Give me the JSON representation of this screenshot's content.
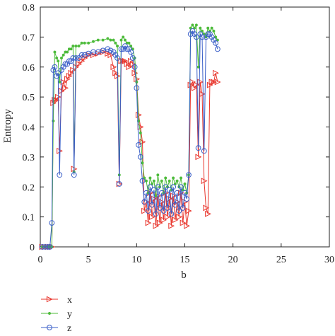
{
  "chart_data": {
    "type": "line",
    "xlabel": "b",
    "ylabel": "Entropy",
    "xlim": [
      0,
      30
    ],
    "ylim": [
      0,
      0.8
    ],
    "xticks": [
      "0",
      "5",
      "10",
      "15",
      "20",
      "25",
      "30"
    ],
    "yticks": [
      "0",
      "0.1",
      "0.2",
      "0.3",
      "0.4",
      "0.5",
      "0.6",
      "0.7",
      "0.8"
    ],
    "grid": false,
    "legend_position": "bottom-left",
    "colors": {
      "x": "#e8332a",
      "y": "#4cbb3a",
      "z": "#3a5fc8",
      "axis": "#222222"
    },
    "series": [
      {
        "name": "x",
        "marker": "triangle-right",
        "points": [
          [
            0.2,
            0.0
          ],
          [
            0.5,
            0.0
          ],
          [
            0.8,
            0.0
          ],
          [
            1.0,
            0.0
          ],
          [
            1.2,
            0.0
          ],
          [
            1.35,
            0.48
          ],
          [
            1.5,
            0.49
          ],
          [
            1.7,
            0.49
          ],
          [
            1.85,
            0.5
          ],
          [
            2.0,
            0.32
          ],
          [
            2.2,
            0.52
          ],
          [
            2.4,
            0.55
          ],
          [
            2.6,
            0.53
          ],
          [
            2.8,
            0.56
          ],
          [
            3.0,
            0.57
          ],
          [
            3.2,
            0.58
          ],
          [
            3.4,
            0.59
          ],
          [
            3.5,
            0.26
          ],
          [
            3.7,
            0.6
          ],
          [
            4.0,
            0.61
          ],
          [
            4.3,
            0.62
          ],
          [
            4.6,
            0.63
          ],
          [
            5.0,
            0.64
          ],
          [
            5.5,
            0.64
          ],
          [
            6.0,
            0.645
          ],
          [
            6.5,
            0.65
          ],
          [
            7.0,
            0.645
          ],
          [
            7.3,
            0.64
          ],
          [
            7.6,
            0.6
          ],
          [
            7.8,
            0.58
          ],
          [
            8.0,
            0.57
          ],
          [
            8.2,
            0.21
          ],
          [
            8.4,
            0.62
          ],
          [
            8.6,
            0.62
          ],
          [
            8.8,
            0.62
          ],
          [
            9.0,
            0.61
          ],
          [
            9.2,
            0.6
          ],
          [
            9.4,
            0.62
          ],
          [
            9.6,
            0.61
          ],
          [
            9.8,
            0.58
          ],
          [
            10.0,
            0.56
          ],
          [
            10.2,
            0.44
          ],
          [
            10.4,
            0.4
          ],
          [
            10.6,
            0.35
          ],
          [
            10.8,
            0.12
          ],
          [
            11.0,
            0.15
          ],
          [
            11.2,
            0.08
          ],
          [
            11.4,
            0.18
          ],
          [
            11.6,
            0.1
          ],
          [
            11.8,
            0.16
          ],
          [
            12.0,
            0.07
          ],
          [
            12.2,
            0.17
          ],
          [
            12.4,
            0.08
          ],
          [
            12.6,
            0.15
          ],
          [
            12.8,
            0.09
          ],
          [
            13.0,
            0.18
          ],
          [
            13.2,
            0.1
          ],
          [
            13.4,
            0.16
          ],
          [
            13.6,
            0.07
          ],
          [
            13.8,
            0.17
          ],
          [
            14.0,
            0.09
          ],
          [
            14.2,
            0.15
          ],
          [
            14.4,
            0.1
          ],
          [
            14.6,
            0.18
          ],
          [
            14.8,
            0.08
          ],
          [
            15.0,
            0.15
          ],
          [
            15.2,
            0.07
          ],
          [
            15.4,
            0.12
          ],
          [
            15.6,
            0.54
          ],
          [
            15.8,
            0.55
          ],
          [
            16.0,
            0.53
          ],
          [
            16.2,
            0.54
          ],
          [
            16.4,
            0.3
          ],
          [
            16.6,
            0.55
          ],
          [
            16.8,
            0.51
          ],
          [
            17.0,
            0.22
          ],
          [
            17.2,
            0.13
          ],
          [
            17.4,
            0.11
          ],
          [
            17.6,
            0.54
          ],
          [
            17.8,
            0.55
          ],
          [
            18.0,
            0.55
          ],
          [
            18.2,
            0.58
          ],
          [
            18.4,
            0.55
          ]
        ]
      },
      {
        "name": "y",
        "marker": "dot",
        "points": [
          [
            0.2,
            0.0
          ],
          [
            0.5,
            0.0
          ],
          [
            0.8,
            0.0
          ],
          [
            1.0,
            0.0
          ],
          [
            1.2,
            0.0
          ],
          [
            1.35,
            0.42
          ],
          [
            1.5,
            0.65
          ],
          [
            1.7,
            0.63
          ],
          [
            1.85,
            0.62
          ],
          [
            2.0,
            0.55
          ],
          [
            2.2,
            0.63
          ],
          [
            2.4,
            0.64
          ],
          [
            2.6,
            0.65
          ],
          [
            2.8,
            0.65
          ],
          [
            3.0,
            0.66
          ],
          [
            3.2,
            0.66
          ],
          [
            3.4,
            0.67
          ],
          [
            3.5,
            0.25
          ],
          [
            3.7,
            0.67
          ],
          [
            4.0,
            0.67
          ],
          [
            4.3,
            0.68
          ],
          [
            4.6,
            0.68
          ],
          [
            5.0,
            0.68
          ],
          [
            5.5,
            0.685
          ],
          [
            6.0,
            0.69
          ],
          [
            6.5,
            0.69
          ],
          [
            7.0,
            0.695
          ],
          [
            7.3,
            0.69
          ],
          [
            7.6,
            0.69
          ],
          [
            7.8,
            0.68
          ],
          [
            8.0,
            0.67
          ],
          [
            8.2,
            0.24
          ],
          [
            8.4,
            0.69
          ],
          [
            8.6,
            0.7
          ],
          [
            8.8,
            0.69
          ],
          [
            9.0,
            0.68
          ],
          [
            9.2,
            0.68
          ],
          [
            9.4,
            0.67
          ],
          [
            9.6,
            0.66
          ],
          [
            9.8,
            0.63
          ],
          [
            10.0,
            0.55
          ],
          [
            10.2,
            0.42
          ],
          [
            10.4,
            0.38
          ],
          [
            10.6,
            0.28
          ],
          [
            10.8,
            0.23
          ],
          [
            11.0,
            0.22
          ],
          [
            11.2,
            0.18
          ],
          [
            11.4,
            0.23
          ],
          [
            11.6,
            0.21
          ],
          [
            11.8,
            0.22
          ],
          [
            12.0,
            0.17
          ],
          [
            12.2,
            0.24
          ],
          [
            12.4,
            0.2
          ],
          [
            12.6,
            0.22
          ],
          [
            12.8,
            0.18
          ],
          [
            13.0,
            0.23
          ],
          [
            13.2,
            0.2
          ],
          [
            13.4,
            0.22
          ],
          [
            13.6,
            0.19
          ],
          [
            13.8,
            0.23
          ],
          [
            14.0,
            0.21
          ],
          [
            14.2,
            0.22
          ],
          [
            14.4,
            0.2
          ],
          [
            14.6,
            0.23
          ],
          [
            14.8,
            0.19
          ],
          [
            15.0,
            0.21
          ],
          [
            15.2,
            0.18
          ],
          [
            15.4,
            0.24
          ],
          [
            15.6,
            0.73
          ],
          [
            15.8,
            0.74
          ],
          [
            16.0,
            0.73
          ],
          [
            16.2,
            0.74
          ],
          [
            16.4,
            0.6
          ],
          [
            16.6,
            0.73
          ],
          [
            16.8,
            0.72
          ],
          [
            17.0,
            0.71
          ],
          [
            17.2,
            0.7
          ],
          [
            17.4,
            0.73
          ],
          [
            17.6,
            0.72
          ],
          [
            17.8,
            0.73
          ],
          [
            18.0,
            0.72
          ],
          [
            18.2,
            0.7
          ],
          [
            18.4,
            0.69
          ]
        ]
      },
      {
        "name": "z",
        "marker": "circle",
        "points": [
          [
            0.2,
            0.0
          ],
          [
            0.5,
            0.0
          ],
          [
            0.8,
            0.0
          ],
          [
            1.0,
            0.0
          ],
          [
            1.2,
            0.08
          ],
          [
            1.35,
            0.59
          ],
          [
            1.5,
            0.6
          ],
          [
            1.7,
            0.57
          ],
          [
            1.85,
            0.58
          ],
          [
            2.0,
            0.24
          ],
          [
            2.2,
            0.59
          ],
          [
            2.4,
            0.6
          ],
          [
            2.6,
            0.61
          ],
          [
            2.8,
            0.61
          ],
          [
            3.0,
            0.62
          ],
          [
            3.2,
            0.62
          ],
          [
            3.4,
            0.63
          ],
          [
            3.5,
            0.24
          ],
          [
            3.7,
            0.63
          ],
          [
            4.0,
            0.63
          ],
          [
            4.3,
            0.64
          ],
          [
            4.6,
            0.64
          ],
          [
            5.0,
            0.645
          ],
          [
            5.5,
            0.65
          ],
          [
            6.0,
            0.65
          ],
          [
            6.5,
            0.655
          ],
          [
            7.0,
            0.66
          ],
          [
            7.3,
            0.655
          ],
          [
            7.6,
            0.65
          ],
          [
            7.8,
            0.64
          ],
          [
            8.0,
            0.63
          ],
          [
            8.2,
            0.21
          ],
          [
            8.4,
            0.66
          ],
          [
            8.6,
            0.66
          ],
          [
            8.8,
            0.67
          ],
          [
            9.0,
            0.66
          ],
          [
            9.2,
            0.66
          ],
          [
            9.4,
            0.65
          ],
          [
            9.6,
            0.63
          ],
          [
            9.8,
            0.6
          ],
          [
            10.0,
            0.53
          ],
          [
            10.2,
            0.34
          ],
          [
            10.4,
            0.3
          ],
          [
            10.6,
            0.22
          ],
          [
            10.8,
            0.15
          ],
          [
            11.0,
            0.18
          ],
          [
            11.2,
            0.12
          ],
          [
            11.4,
            0.2
          ],
          [
            11.6,
            0.14
          ],
          [
            11.8,
            0.19
          ],
          [
            12.0,
            0.11
          ],
          [
            12.2,
            0.2
          ],
          [
            12.4,
            0.13
          ],
          [
            12.6,
            0.18
          ],
          [
            12.8,
            0.12
          ],
          [
            13.0,
            0.2
          ],
          [
            13.2,
            0.13
          ],
          [
            13.4,
            0.19
          ],
          [
            13.6,
            0.11
          ],
          [
            13.8,
            0.2
          ],
          [
            14.0,
            0.14
          ],
          [
            14.2,
            0.18
          ],
          [
            14.4,
            0.12
          ],
          [
            14.6,
            0.2
          ],
          [
            14.8,
            0.13
          ],
          [
            15.0,
            0.18
          ],
          [
            15.2,
            0.16
          ],
          [
            15.4,
            0.24
          ],
          [
            15.6,
            0.71
          ],
          [
            15.8,
            0.72
          ],
          [
            16.0,
            0.71
          ],
          [
            16.2,
            0.7
          ],
          [
            16.4,
            0.33
          ],
          [
            16.6,
            0.71
          ],
          [
            16.8,
            0.7
          ],
          [
            17.0,
            0.32
          ],
          [
            17.2,
            0.7
          ],
          [
            17.4,
            0.71
          ],
          [
            17.6,
            0.71
          ],
          [
            17.8,
            0.7
          ],
          [
            18.0,
            0.69
          ],
          [
            18.2,
            0.68
          ],
          [
            18.4,
            0.66
          ]
        ]
      }
    ]
  }
}
